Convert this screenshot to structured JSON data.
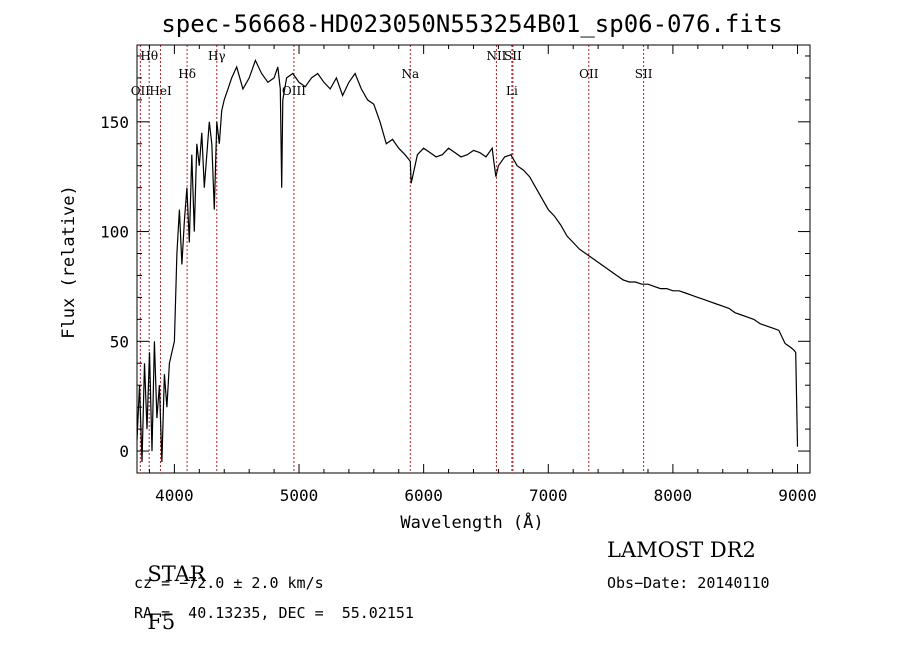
{
  "chart_data": {
    "type": "line",
    "title": "spec-56668-HD023050N553254B01_sp06-076.fits",
    "xlabel": "Wavelength (Å)",
    "ylabel": "Flux (relative)",
    "xlim": [
      3700,
      9100
    ],
    "ylim": [
      -10,
      185
    ],
    "x_ticks": [
      4000,
      5000,
      6000,
      7000,
      8000,
      9000
    ],
    "y_ticks": [
      0,
      50,
      100,
      150
    ],
    "grid": false,
    "series": [
      {
        "x": [
          3700,
          3720,
          3740,
          3760,
          3780,
          3800,
          3820,
          3840,
          3860,
          3880,
          3900,
          3920,
          3940,
          3960,
          3980,
          4000,
          4020,
          4040,
          4060,
          4080,
          4100,
          4120,
          4140,
          4160,
          4180,
          4200,
          4220,
          4240,
          4260,
          4280,
          4300,
          4320,
          4340,
          4360,
          4380,
          4400,
          4430,
          4460,
          4500,
          4550,
          4600,
          4650,
          4700,
          4750,
          4800,
          4830,
          4850,
          4861,
          4870,
          4900,
          4950,
          5000,
          5050,
          5100,
          5150,
          5200,
          5250,
          5300,
          5350,
          5400,
          5450,
          5500,
          5550,
          5600,
          5650,
          5700,
          5750,
          5800,
          5850,
          5893,
          5900,
          5950,
          6000,
          6050,
          6100,
          6150,
          6200,
          6250,
          6300,
          6350,
          6400,
          6450,
          6500,
          6550,
          6563,
          6580,
          6600,
          6650,
          6700,
          6750,
          6800,
          6850,
          6900,
          6950,
          7000,
          7050,
          7100,
          7150,
          7200,
          7250,
          7300,
          7350,
          7400,
          7450,
          7500,
          7550,
          7600,
          7650,
          7700,
          7750,
          7800,
          7850,
          7900,
          7950,
          8000,
          8050,
          8100,
          8150,
          8200,
          8250,
          8300,
          8350,
          8400,
          8450,
          8500,
          8550,
          8600,
          8650,
          8700,
          8750,
          8800,
          8850,
          8900,
          8950,
          8970,
          8985,
          9000
        ],
        "y": [
          5,
          30,
          -5,
          40,
          10,
          45,
          0,
          50,
          15,
          30,
          -5,
          35,
          20,
          40,
          45,
          50,
          90,
          110,
          85,
          105,
          120,
          95,
          135,
          100,
          140,
          130,
          145,
          120,
          135,
          150,
          140,
          110,
          150,
          140,
          155,
          160,
          165,
          170,
          175,
          165,
          170,
          178,
          172,
          168,
          170,
          175,
          165,
          120,
          160,
          170,
          172,
          168,
          166,
          170,
          172,
          168,
          165,
          170,
          162,
          168,
          172,
          165,
          160,
          158,
          150,
          140,
          142,
          138,
          135,
          132,
          122,
          135,
          138,
          136,
          134,
          135,
          138,
          136,
          134,
          135,
          137,
          136,
          134,
          138,
          132,
          125,
          130,
          134,
          135,
          130,
          128,
          125,
          120,
          115,
          110,
          107,
          103,
          98,
          95,
          92,
          90,
          88,
          86,
          84,
          82,
          80,
          78,
          77,
          77,
          76,
          76,
          75,
          74,
          74,
          73,
          73,
          72,
          71,
          70,
          69,
          68,
          67,
          66,
          65,
          63,
          62,
          61,
          60,
          58,
          57,
          56,
          55,
          49,
          47,
          46,
          45,
          2
        ]
      }
    ],
    "spectral_lines": [
      {
        "label": "Hθ",
        "x": 3798,
        "row": 1
      },
      {
        "label": "OII",
        "x": 3727,
        "row": 2
      },
      {
        "label": "HeI",
        "x": 3889,
        "row": 2
      },
      {
        "label": "Hδ",
        "x": 4102,
        "row": 1.5
      },
      {
        "label": "Hγ",
        "x": 4340,
        "row": 1
      },
      {
        "label": "OIII",
        "x": 4959,
        "row": 2
      },
      {
        "label": "Na",
        "x": 5893,
        "row": 1.5
      },
      {
        "label": "NII",
        "x": 6584,
        "row": 1
      },
      {
        "label": "SII",
        "x": 6716,
        "row": 1
      },
      {
        "label": "Li",
        "x": 6708,
        "row": 2
      },
      {
        "label": "OII",
        "x": 7325,
        "row": 1.5
      },
      {
        "label": "SII",
        "x": 7765,
        "row": 1.5
      }
    ]
  },
  "info": {
    "object_class": "STAR",
    "subclass": "F5",
    "survey": "LAMOST DR2",
    "cz": "cz = −72.0 ± 2.0 km/s",
    "obs_date": "Obs−Date: 20140110",
    "coords": "RA =  40.13235, DEC =  55.02151"
  },
  "colors": {
    "spectrum": "#000000",
    "line_markers": "#b22222"
  }
}
